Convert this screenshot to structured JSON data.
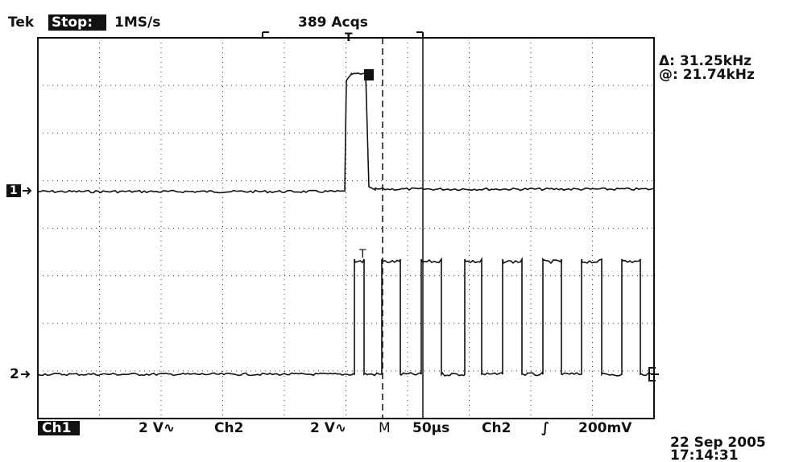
{
  "header": {
    "brand": "Tek",
    "state": "Stop:",
    "rate": "1MS/s",
    "acquisitions": "389 Acqs"
  },
  "readout": {
    "delta": "Δ: 31.25kHz",
    "at": "@: 21.74kHz"
  },
  "markers": {
    "ch1": "1",
    "ch2": "2",
    "trigger": "T"
  },
  "footer": {
    "ch1": "Ch1",
    "ch1_scale": "2 V∿",
    "ch2": "Ch2",
    "ch2_scale": "2 V∿",
    "timebase_label": "M",
    "timebase": "50µs",
    "trigger_source": "Ch2",
    "trigger_slope": "∫",
    "trigger_level": "200mV"
  },
  "timestamp": {
    "date": "22 Sep 2005",
    "time": "17:14:31"
  }
}
